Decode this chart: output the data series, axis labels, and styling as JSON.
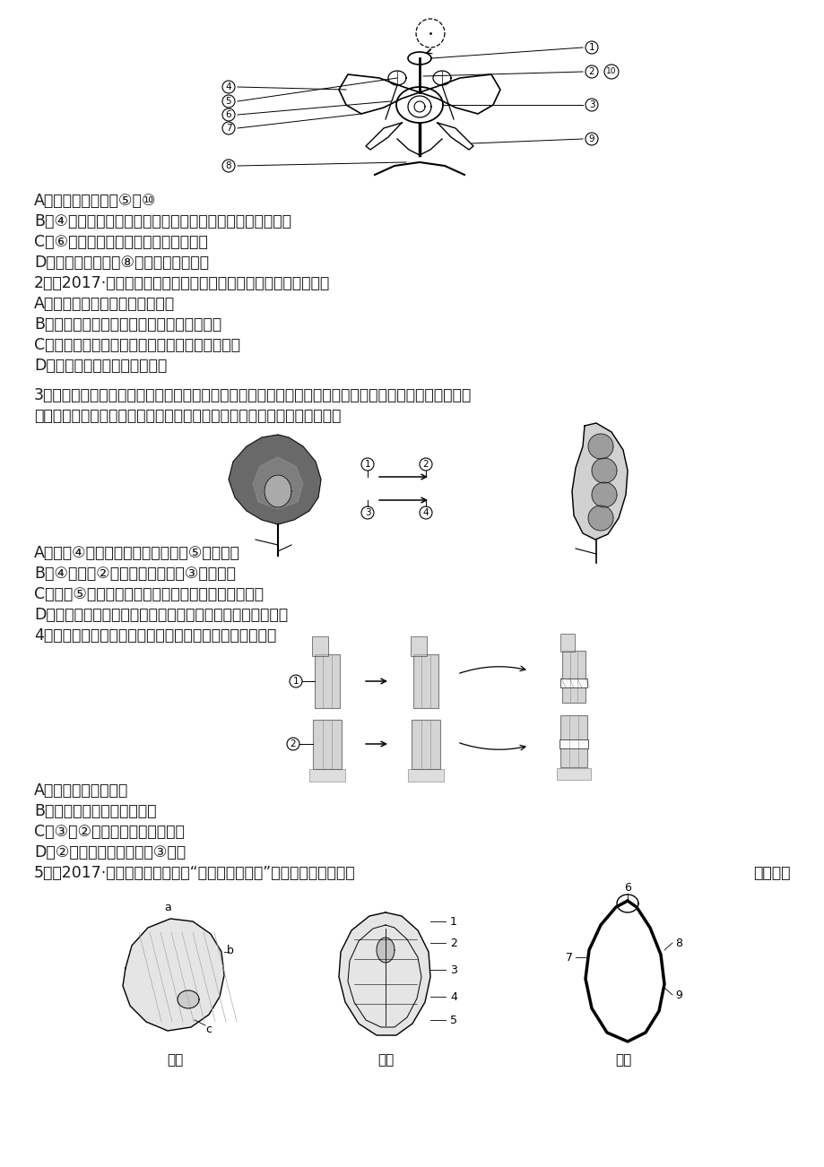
{
  "bg_color": "#ffffff",
  "text_color": "#1a1a1a",
  "lines_top": [
    "A．花的主要结构是⑤和⑩",
    "B．④由子房壁和胚珠组成，其中的卵细胞受精后发育成种子",
    "C．⑥中的花粉落到柱头上的过程叫传粉",
    "D．桃花具有鲜色的⑧，能吸引昆虫传粉",
    "2．（2017·泰安一模）有关桃花的知识，叙述不正确的是（　　）",
    "A．桃花的主要部分是雄蕊和雌蕊",
    "B．卵细胞受精后，将来发育成种子中的胚乳",
    "C．花药中的花粉落到雌蕊柱头上的过程称为传粉",
    "D．胚珠的珠被将来发育成种皮"
  ],
  "q3_lines": [
    "3．（原创）被子植物繁殖后代必须经历传粉和受精两个重要的生理过程，豌豆在完成传粉和受精后，花的",
    "各部分结构发生了如下变化，请据图分析判断，以下说法错误的是（　　）"
  ],
  "q3_answers": [
    "A．花中④指的是子房，由它发育成⑤豌豆豆荚",
    "B．④里面有②胚珠，由它发育成③豌豆种子",
    "C．图中⑤的最外面一层叫作果皮，由子房壁发育而来",
    "D．豌豆的花为两性花，传粉、受精完成后花瓣、雌蕊等凋落"
  ],
  "q4_line": "4．（改编）对于如图所示过程的描述，正确的是（　　）",
  "q4_answers": [
    "A．该图表示摧插过程",
    "B．图中所示为有性生殖过程",
    "C．③为②提供生长发育所需营养",
    "D．②以后所结果实性状由③决定"
  ],
  "q5_line": "5．（2017·泰安一模）下列有关“观察种子的结构”实验，分析正确的是"
}
